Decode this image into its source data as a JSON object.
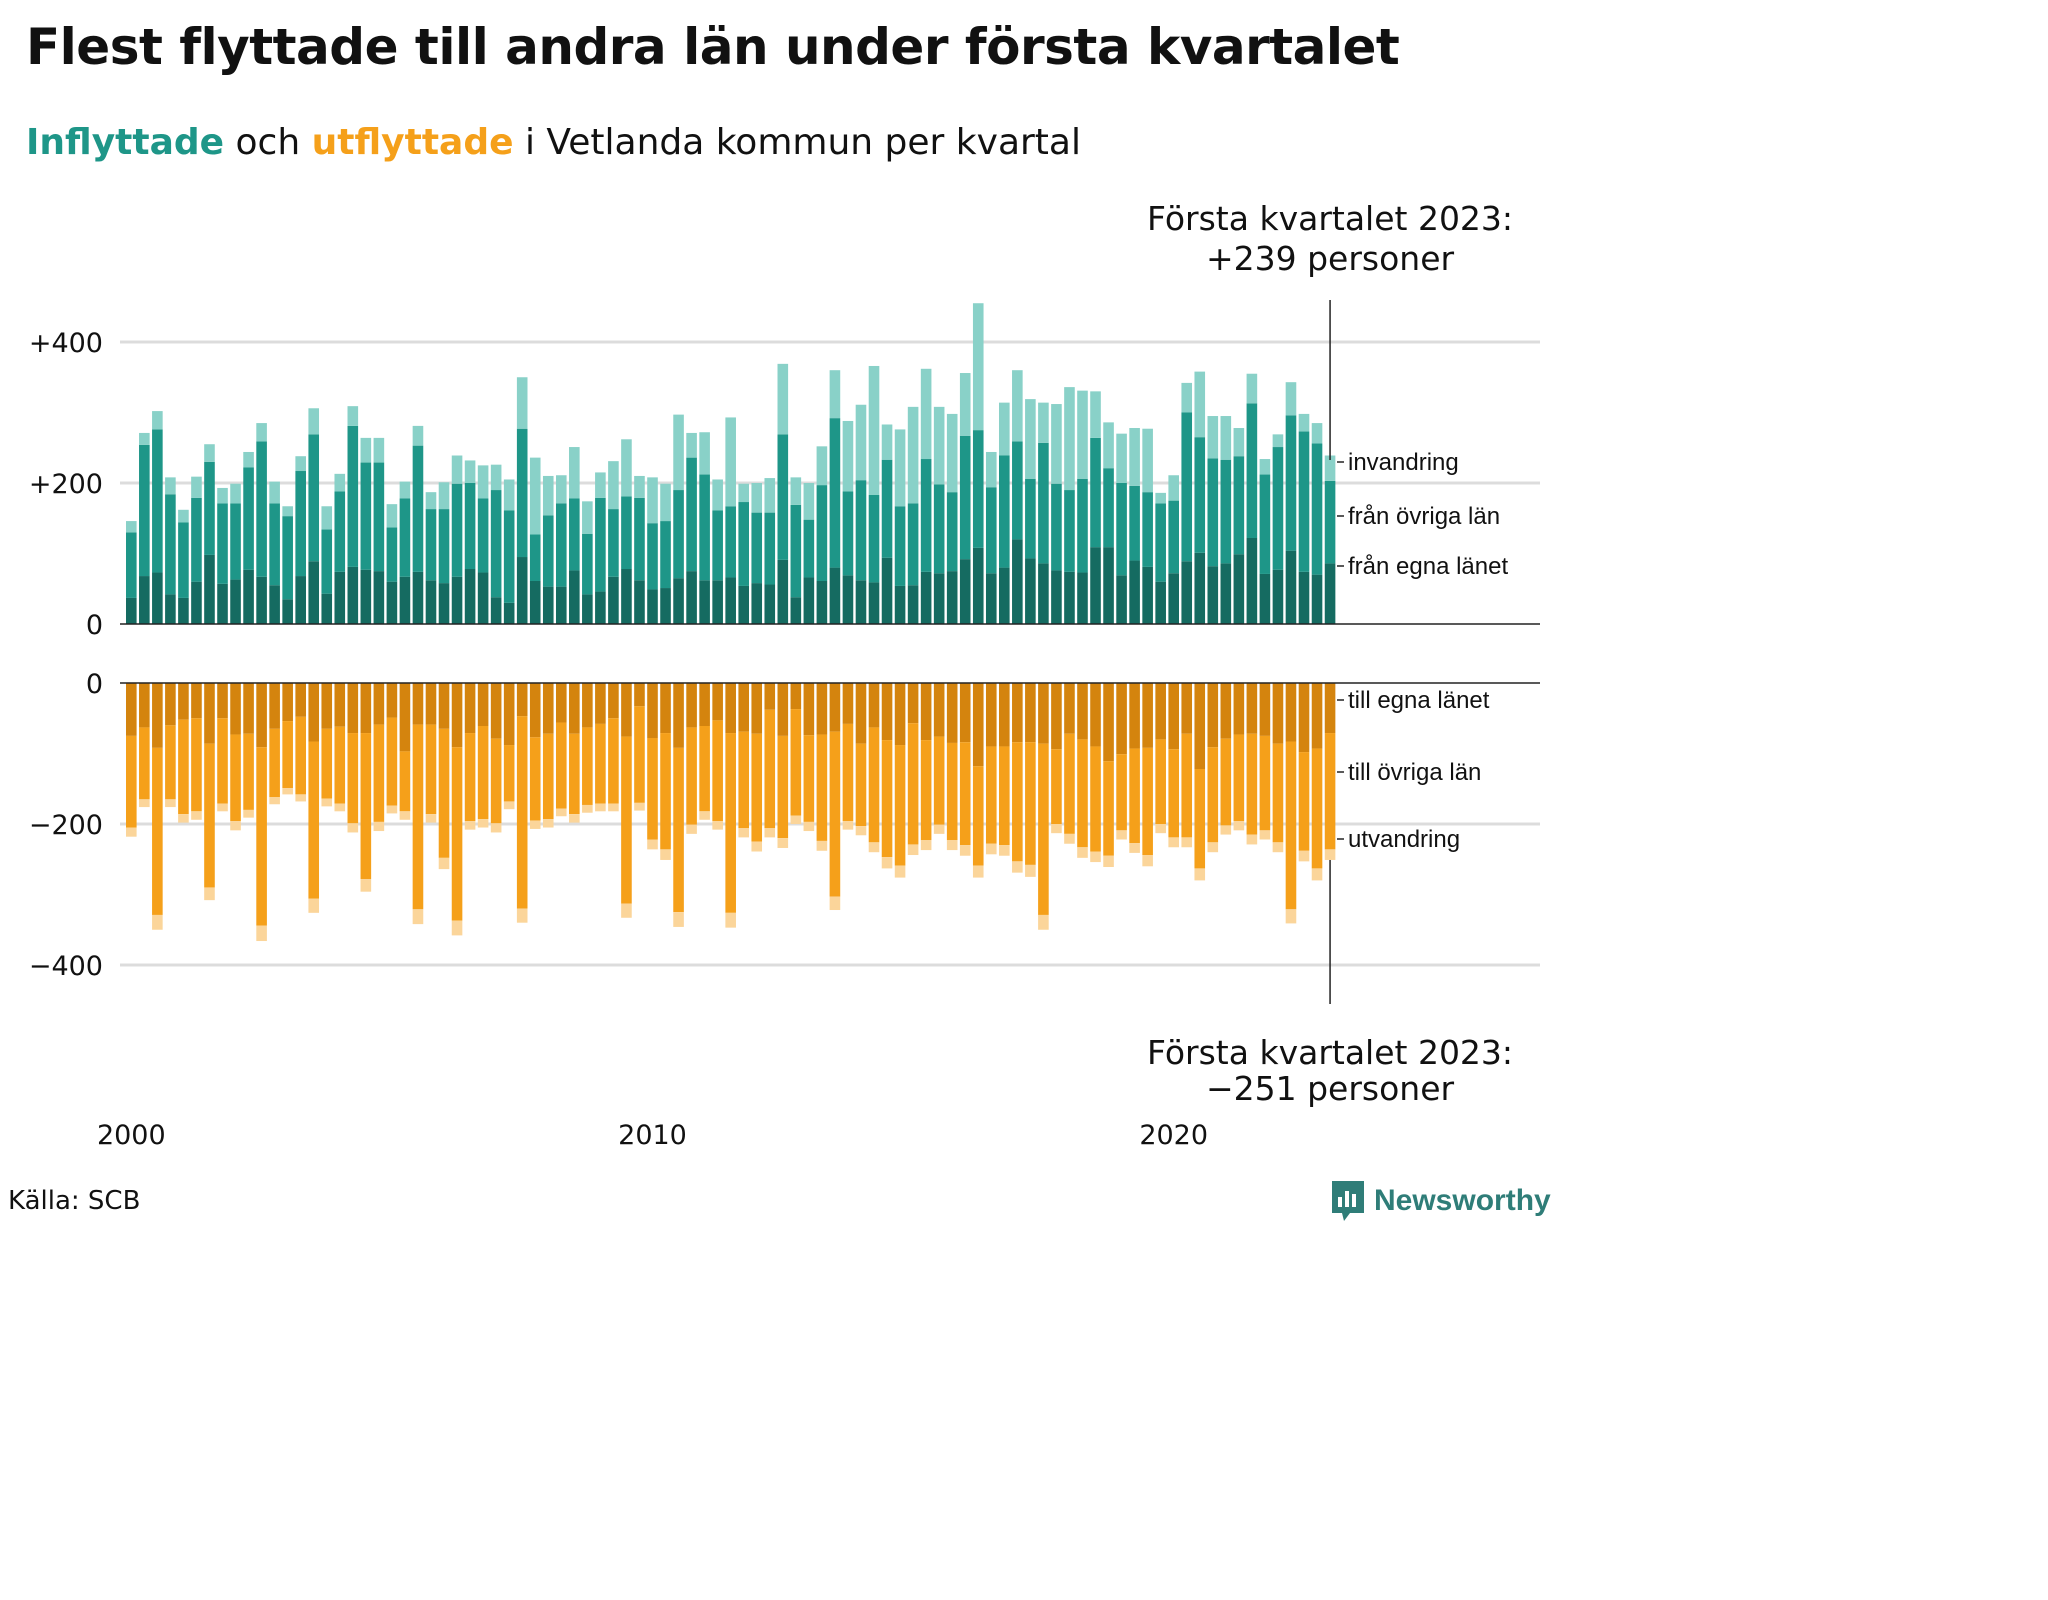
{
  "title": "Flest flyttade till andra län under första kvartalet",
  "subtitle": {
    "inflow": "Inflyttade",
    "and": "och",
    "outflow": "utflyttade",
    "rest": "i Vetlanda kommun per kvartal"
  },
  "source": "Källa: SCB",
  "logo": "Newsworthy",
  "colors": {
    "in_same_county": "#156b61",
    "in_other_counties": "#1e9688",
    "in_immigration": "#89d1c8",
    "out_same_county": "#d4840e",
    "out_other_counties": "#f5a01a",
    "out_emigration": "#fbd59a"
  },
  "chart_data": {
    "type": "bar",
    "stacked": true,
    "x_start": "2000 Q1",
    "x_ticks": [
      "2000",
      "2010",
      "2020"
    ],
    "upper_y_ticks": [
      "+400",
      "+200",
      "0"
    ],
    "lower_y_ticks": [
      "0",
      "−200",
      "−400"
    ],
    "upper_ylim": [
      0,
      460
    ],
    "lower_ylim": [
      -460,
      0
    ],
    "inflow_series_labels": [
      "invandring",
      "från övriga län",
      "från egna länet"
    ],
    "outflow_series_labels": [
      "till egna länet",
      "till övriga län",
      "utvandring"
    ],
    "annotation_inflow": [
      "Första kvartalet 2023:",
      "+239 personer"
    ],
    "annotation_outflow": [
      "Första kvartalet 2023:",
      "−251 personer"
    ],
    "inflow": {
      "same_county": [
        37,
        68,
        73,
        42,
        37,
        60,
        98,
        57,
        63,
        77,
        67,
        55,
        35,
        68,
        89,
        43,
        74,
        81,
        77,
        75,
        60,
        67,
        74,
        62,
        58,
        67,
        78,
        73,
        38,
        30,
        95,
        61,
        53,
        53,
        76,
        42,
        46,
        67,
        78,
        62,
        49,
        51,
        65,
        75,
        62,
        62,
        66,
        54,
        58,
        56,
        91,
        38,
        66,
        61,
        80,
        69,
        62,
        59,
        94,
        54,
        55,
        74,
        72,
        75,
        92,
        108,
        72,
        80,
        120,
        93,
        86,
        76,
        74,
        73,
        109,
        109,
        69,
        90,
        81,
        60,
        72,
        89,
        101,
        82,
        86,
        99,
        122,
        71,
        77,
        104,
        74,
        70,
        86
      ],
      "other_counties": [
        93,
        186,
        203,
        142,
        107,
        119,
        132,
        114,
        108,
        145,
        192,
        116,
        118,
        149,
        180,
        91,
        114,
        200,
        152,
        154,
        77,
        111,
        179,
        101,
        105,
        132,
        122,
        105,
        152,
        131,
        182,
        66,
        101,
        118,
        102,
        86,
        133,
        96,
        103,
        117,
        94,
        95,
        125,
        161,
        150,
        99,
        101,
        119,
        100,
        102,
        178,
        131,
        82,
        136,
        212,
        119,
        142,
        124,
        139,
        113,
        116,
        160,
        126,
        112,
        175,
        167,
        122,
        159,
        139,
        113,
        171,
        123,
        116,
        133,
        155,
        112,
        131,
        106,
        106,
        111,
        103,
        211,
        164,
        153,
        147,
        139,
        191,
        141,
        174,
        192,
        199,
        186,
        117
      ],
      "immigration": [
        16,
        17,
        26,
        24,
        18,
        30,
        25,
        22,
        28,
        22,
        26,
        31,
        14,
        21,
        37,
        33,
        25,
        28,
        35,
        35,
        33,
        24,
        28,
        24,
        38,
        40,
        32,
        47,
        36,
        44,
        73,
        109,
        56,
        40,
        73,
        46,
        36,
        68,
        81,
        31,
        65,
        53,
        107,
        35,
        60,
        44,
        126,
        26,
        42,
        49,
        100,
        39,
        52,
        55,
        68,
        100,
        107,
        183,
        50,
        109,
        137,
        128,
        110,
        111,
        89,
        180,
        50,
        75,
        101,
        113,
        57,
        113,
        146,
        125,
        66,
        65,
        70,
        82,
        90,
        15,
        36,
        42,
        93,
        60,
        62,
        40,
        42,
        22,
        18,
        47,
        25,
        29,
        36
      ]
    },
    "outflow": {
      "same_county": [
        -75,
        -63,
        -92,
        -60,
        -52,
        -50,
        -86,
        -50,
        -73,
        -72,
        -91,
        -65,
        -54,
        -48,
        -83,
        -65,
        -62,
        -71,
        -71,
        -59,
        -49,
        -97,
        -59,
        -59,
        -65,
        -91,
        -71,
        -61,
        -79,
        -88,
        -47,
        -77,
        -72,
        -56,
        -72,
        -63,
        -58,
        -50,
        -76,
        -33,
        -78,
        -71,
        -92,
        -63,
        -61,
        -53,
        -71,
        -69,
        -72,
        -38,
        -75,
        -37,
        -74,
        -73,
        -69,
        -58,
        -86,
        -63,
        -81,
        -88,
        -57,
        -81,
        -76,
        -85,
        -84,
        -118,
        -90,
        -90,
        -84,
        -84,
        -86,
        -94,
        -72,
        -80,
        -90,
        -111,
        -101,
        -93,
        -92,
        -80,
        -94,
        -72,
        -122,
        -91,
        -79,
        -73,
        -72,
        -75,
        -86,
        -83,
        -98,
        -93,
        -71
      ]
    }
  }
}
